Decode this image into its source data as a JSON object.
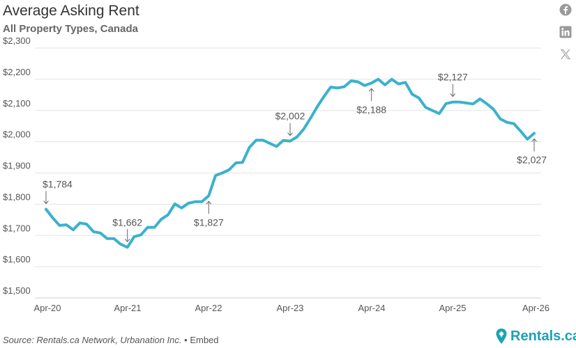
{
  "header": {
    "title": "Average Asking Rent",
    "subtitle": "All Property Types, Canada"
  },
  "social": [
    "facebook-icon",
    "linkedin-icon",
    "x-icon"
  ],
  "footer": {
    "source": "Source: Rentals.ca Network, Urbanation Inc.",
    "separator": "•",
    "embed": "Embed",
    "brand": "Rentals.ca"
  },
  "colors": {
    "line": "#3bb1cc",
    "brand": "#1aa3b5",
    "grid": "#e3e3e3",
    "text": "#555555"
  },
  "chart_data": {
    "type": "line",
    "title": "Average Asking Rent",
    "subtitle": "All Property Types, Canada",
    "x_ticks": [
      "Apr-20",
      "Apr-21",
      "Apr-22",
      "Apr-23",
      "Apr-24",
      "Apr-25",
      "Apr-26"
    ],
    "y_ticks": [
      "$1,500",
      "$1,600",
      "$1,700",
      "$1,800",
      "$1,900",
      "$2,000",
      "$2,100",
      "$2,200",
      "$2,300"
    ],
    "ylim": [
      1500,
      2300
    ],
    "grid": "horizontal",
    "series": [
      {
        "x": [
          "2020-04",
          "2020-05",
          "2020-06",
          "2020-07",
          "2020-08",
          "2020-09",
          "2020-10",
          "2020-11",
          "2020-12",
          "2021-01",
          "2021-02",
          "2021-03",
          "2021-04",
          "2021-05",
          "2021-06",
          "2021-07",
          "2021-08",
          "2021-09",
          "2021-10",
          "2021-11",
          "2021-12",
          "2022-01",
          "2022-02",
          "2022-03",
          "2022-04",
          "2022-05",
          "2022-06",
          "2022-07",
          "2022-08",
          "2022-09",
          "2022-10",
          "2022-11",
          "2022-12",
          "2023-01",
          "2023-02",
          "2023-03",
          "2023-04",
          "2023-05",
          "2023-06",
          "2023-07",
          "2023-08",
          "2023-09",
          "2023-10",
          "2023-11",
          "2023-12",
          "2024-01",
          "2024-02",
          "2024-03",
          "2024-04",
          "2024-05",
          "2024-06",
          "2024-07",
          "2024-08",
          "2024-09",
          "2024-10",
          "2024-11",
          "2024-12",
          "2025-01",
          "2025-02",
          "2025-03",
          "2025-04",
          "2025-05",
          "2025-06",
          "2025-07",
          "2025-08",
          "2025-09",
          "2025-10",
          "2025-11",
          "2025-12",
          "2026-01",
          "2026-02",
          "2026-03",
          "2026-04"
        ],
        "values": [
          1784,
          1756,
          1732,
          1734,
          1718,
          1740,
          1736,
          1712,
          1708,
          1690,
          1690,
          1672,
          1662,
          1696,
          1702,
          1726,
          1726,
          1752,
          1766,
          1801,
          1788,
          1803,
          1808,
          1808,
          1827,
          1892,
          1900,
          1910,
          1932,
          1934,
          1982,
          2005,
          2005,
          1995,
          1985,
          2004,
          2002,
          2015,
          2040,
          2075,
          2112,
          2145,
          2175,
          2172,
          2176,
          2195,
          2192,
          2180,
          2188,
          2200,
          2182,
          2200,
          2185,
          2190,
          2152,
          2140,
          2110,
          2100,
          2090,
          2122,
          2127,
          2127,
          2124,
          2121,
          2137,
          2122,
          2104,
          2073,
          2062,
          2058,
          2034,
          2008,
          2027
        ]
      }
    ],
    "annotations": [
      {
        "x": "2020-04",
        "value": 1784,
        "label": "$1,784",
        "pos": "above"
      },
      {
        "x": "2021-04",
        "value": 1662,
        "label": "$1,662",
        "pos": "above"
      },
      {
        "x": "2022-04",
        "value": 1827,
        "label": "$1,827",
        "pos": "below"
      },
      {
        "x": "2023-04",
        "value": 2002,
        "label": "$2,002",
        "pos": "above"
      },
      {
        "x": "2024-04",
        "value": 2188,
        "label": "$2,188",
        "pos": "below"
      },
      {
        "x": "2025-04",
        "value": 2127,
        "label": "$2,127",
        "pos": "above"
      },
      {
        "x": "2026-04",
        "value": 2027,
        "label": "$2,027",
        "pos": "below"
      }
    ]
  }
}
